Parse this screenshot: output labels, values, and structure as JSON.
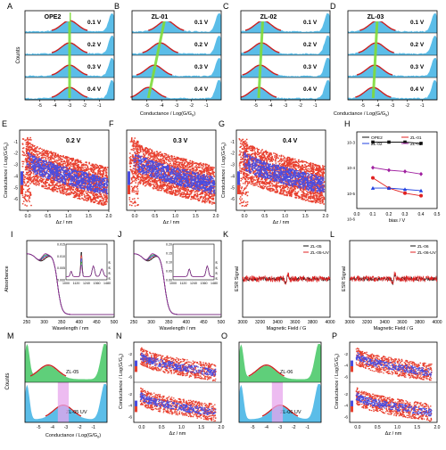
{
  "figure": {
    "panels": [
      {
        "letter": "A",
        "molecule": "OPE2"
      },
      {
        "letter": "B",
        "molecule": "ZL-01"
      },
      {
        "letter": "C",
        "molecule": "ZL-02"
      },
      {
        "letter": "D",
        "molecule": "ZL-03"
      },
      {
        "letter": "E",
        "bias": "0.2 V"
      },
      {
        "letter": "F",
        "bias": "0.3 V"
      },
      {
        "letter": "G",
        "bias": "0.4 V"
      },
      {
        "letter": "H"
      },
      {
        "letter": "I"
      },
      {
        "letter": "J"
      },
      {
        "letter": "K"
      },
      {
        "letter": "L"
      },
      {
        "letter": "M"
      },
      {
        "letter": "N"
      },
      {
        "letter": "O"
      },
      {
        "letter": "P"
      }
    ],
    "bias_labels": [
      "0.1 V",
      "0.2 V",
      "0.3 V",
      "0.4 V"
    ],
    "labels": {
      "counts": "Counts",
      "conductance_log": "Conductance / Log(G/G",
      "g0_sub": "0",
      "conductance_y": "Conductance / Log(G/G",
      "dz": "Δz / nm",
      "bias": "bias / V",
      "absorbance": "Absorbance",
      "wavelength": "Wavelength / nm",
      "esr_signal": "ESR Signal",
      "magnetic_field": "Magnetic Field / G"
    },
    "colors": {
      "histogram_fill": "#5bbde8",
      "fit_curve": "#cc1f1f",
      "peak_line": "#7fdc3a",
      "cloud_red": "#e8402f",
      "cloud_blue": "#4a4de0",
      "m_top_fill": "#5fcf7a",
      "uv_band": "#e7a6ec"
    }
  },
  "chart_data": [
    {
      "panel": "A",
      "type": "area",
      "title": "OPE2",
      "xlabel": "Conductance / Log(G/G0)",
      "ylabel": "Counts",
      "xlim": [
        -6,
        0
      ],
      "xticks": [
        -5,
        -4,
        -3,
        -2,
        -1
      ],
      "series": [
        {
          "name": "0.1 V",
          "peak": -3.0
        },
        {
          "name": "0.2 V",
          "peak": -3.0
        },
        {
          "name": "0.3 V",
          "peak": -3.0
        },
        {
          "name": "0.4 V",
          "peak": -3.0
        }
      ]
    },
    {
      "panel": "B",
      "type": "area",
      "title": "ZL-01",
      "xlabel": "Conductance / Log(G/G0)",
      "ylabel": "Counts",
      "xlim": [
        -6,
        0
      ],
      "xticks": [
        -5,
        -4,
        -3,
        -2,
        -1
      ],
      "series": [
        {
          "name": "0.1 V",
          "peak": -3.7
        },
        {
          "name": "0.2 V",
          "peak": -4.1
        },
        {
          "name": "0.3 V",
          "peak": -4.5
        },
        {
          "name": "0.4 V",
          "peak": -4.9
        }
      ]
    },
    {
      "panel": "C",
      "type": "area",
      "title": "ZL-02",
      "xlabel": "Conductance / Log(G/G0)",
      "ylabel": "Counts",
      "xlim": [
        -6,
        0
      ],
      "xticks": [
        -5,
        -4,
        -3,
        -2,
        -1
      ],
      "series": [
        {
          "name": "0.1 V",
          "peak": -4.5
        },
        {
          "name": "0.2 V",
          "peak": -4.6
        },
        {
          "name": "0.3 V",
          "peak": -4.7
        },
        {
          "name": "0.4 V",
          "peak": -4.8
        }
      ]
    },
    {
      "panel": "D",
      "type": "area",
      "title": "ZL-03",
      "xlabel": "Conductance / Log(G/G0)",
      "ylabel": "Counts",
      "xlim": [
        -6,
        0
      ],
      "xticks": [
        -5,
        -4,
        -3,
        -2,
        -1
      ],
      "series": [
        {
          "name": "0.1 V",
          "peak": -4.0
        },
        {
          "name": "0.2 V",
          "peak": -4.1
        },
        {
          "name": "0.3 V",
          "peak": -4.2
        },
        {
          "name": "0.4 V",
          "peak": -4.3
        }
      ]
    },
    {
      "panel": "E",
      "type": "heatmap",
      "title": "0.2 V",
      "xlabel": "Δz / nm",
      "ylabel": "Conductance / Log(G/G0)",
      "xlim": [
        -0.2,
        2.0
      ],
      "ylim": [
        -7,
        0
      ],
      "xticks": [
        0.0,
        0.5,
        1.0,
        1.5,
        2.0
      ],
      "yticks": [
        -1,
        -2,
        -3,
        -4,
        -5,
        -6
      ]
    },
    {
      "panel": "F",
      "type": "heatmap",
      "title": "0.3 V",
      "xlabel": "Δz / nm",
      "xlim": [
        -0.2,
        2.0
      ],
      "ylim": [
        -7,
        0
      ],
      "xticks": [
        0.0,
        0.5,
        1.0,
        1.5,
        2.0
      ]
    },
    {
      "panel": "G",
      "type": "heatmap",
      "title": "0.4 V",
      "xlabel": "Δz / nm",
      "ylabel": "Conductance / Log(G/G0)",
      "xlim": [
        -0.2,
        2.0
      ],
      "ylim": [
        -7,
        0
      ],
      "xticks": [
        0.0,
        0.5,
        1.0,
        1.5,
        2.0
      ],
      "yticks": [
        -1,
        -2,
        -3,
        -4,
        -5,
        -6
      ]
    },
    {
      "panel": "H",
      "type": "line",
      "xlabel": "bias / V",
      "ylabel": "Conductance",
      "log_y": true,
      "xlim": [
        0.0,
        0.5
      ],
      "xticks": [
        0.0,
        0.1,
        0.2,
        0.3,
        0.4,
        0.5
      ],
      "ytick_labels": [
        "10-3",
        "10-4",
        "10-5",
        "10-6"
      ],
      "legend": "top",
      "x": [
        0.1,
        0.2,
        0.3,
        0.4
      ],
      "series": [
        {
          "name": "OPE2",
          "color": "#111111",
          "marker": "square",
          "values": [
            -3.0,
            -3.0,
            -3.0,
            -3.05
          ]
        },
        {
          "name": "ZL-01",
          "color": "#e02020",
          "marker": "circle",
          "values": [
            -4.4,
            -4.8,
            -5.0,
            -5.1
          ]
        },
        {
          "name": "ZL-02",
          "color": "#2040e0",
          "marker": "triangle",
          "values": [
            -4.8,
            -4.8,
            -4.85,
            -4.9
          ]
        },
        {
          "name": "ZL-03",
          "color": "#a020a0",
          "marker": "diamond",
          "values": [
            -4.0,
            -4.1,
            -4.15,
            -4.25
          ]
        }
      ]
    },
    {
      "panel": "I",
      "type": "line",
      "xlabel": "Wavelength / nm",
      "ylabel": "Absorbance",
      "xlim": [
        250,
        500
      ],
      "xticks": [
        250,
        300,
        350,
        400,
        450,
        500
      ],
      "legend": "right",
      "series": [
        {
          "name": "0 s"
        },
        {
          "name": "150 s"
        },
        {
          "name": "300 s"
        },
        {
          "name": "450 s"
        },
        {
          "name": "600 s"
        }
      ],
      "inset": {
        "xticks": [
          1000,
          1120,
          1240,
          1360,
          1480
        ],
        "yticks": [
          0.0,
          0.005,
          0.01,
          0.015
        ],
        "ytick_labels": [
          "0.000",
          "0.005",
          "0.010",
          "0.015"
        ]
      }
    },
    {
      "panel": "J",
      "type": "line",
      "xlabel": "Wavelength / nm",
      "xlim": [
        250,
        500
      ],
      "xticks": [
        250,
        300,
        350,
        400,
        450,
        500
      ],
      "legend": "right",
      "series": [
        {
          "name": "0 s"
        },
        {
          "name": "150 s"
        },
        {
          "name": "300 s"
        },
        {
          "name": "450 s"
        },
        {
          "name": "600 s"
        }
      ],
      "inset": {
        "xticks": [
          1000,
          1120,
          1240,
          1360,
          1480
        ],
        "yticks": [
          0.0,
          0.05,
          0.1,
          0.15,
          0.2
        ],
        "ytick_labels": [
          "0.00",
          "0.05",
          "0.10",
          "0.15",
          "0.20"
        ]
      }
    },
    {
      "panel": "K",
      "type": "line",
      "xlabel": "Magnetic Field / G",
      "ylabel": "ESR Signal",
      "xlim": [
        3000,
        4000
      ],
      "xticks": [
        3000,
        3200,
        3400,
        3600,
        3800,
        4000
      ],
      "legend": "top-right",
      "series": [
        {
          "name": "ZL-05"
        },
        {
          "name": "ZL-05-UV"
        }
      ]
    },
    {
      "panel": "L",
      "type": "line",
      "xlabel": "Magnetic Field / G",
      "ylabel": "ESR Signal",
      "xlim": [
        3000,
        4000
      ],
      "xticks": [
        3000,
        3200,
        3400,
        3600,
        3800,
        4000
      ],
      "legend": "top-right",
      "series": [
        {
          "name": "ZL-06"
        },
        {
          "name": "ZL-06-UV"
        }
      ]
    },
    {
      "panel": "M",
      "type": "area",
      "xlabel": "Conductance / Log(G/G0)",
      "ylabel": "Counts",
      "xlim": [
        -6,
        0
      ],
      "xticks": [
        -5,
        -4,
        -3,
        -2,
        -1
      ],
      "series": [
        {
          "name": "ZL-05",
          "peak": -4.3
        },
        {
          "name": "ZL-05 UV",
          "peak": -3.2
        }
      ]
    },
    {
      "panel": "N",
      "type": "heatmap",
      "xlabel": "Δz / nm",
      "ylabel": "Conductance / Log(G/G0)",
      "xlim": [
        -0.2,
        2.0
      ],
      "xticks": [
        0.0,
        0.5,
        1.0,
        1.5,
        2.0
      ],
      "yticks": [
        -2,
        -4,
        -6
      ]
    },
    {
      "panel": "O",
      "type": "area",
      "xlabel": "Conductance / Log(G/G0)",
      "xlim": [
        -6,
        0
      ],
      "xticks": [
        -5,
        -4,
        -3,
        -2,
        -1
      ],
      "series": [
        {
          "name": "ZL-06",
          "peak": -4.0
        },
        {
          "name": "ZL-06 UV",
          "peak": -3.0
        }
      ]
    },
    {
      "panel": "P",
      "type": "heatmap",
      "xlabel": "Δz / nm",
      "ylabel": "Conductance / Log(G/G0)",
      "xlim": [
        -0.2,
        2.0
      ],
      "xticks": [
        0.0,
        0.5,
        1.0,
        1.5,
        2.0
      ],
      "yticks": [
        -2,
        -4,
        -6
      ]
    }
  ]
}
